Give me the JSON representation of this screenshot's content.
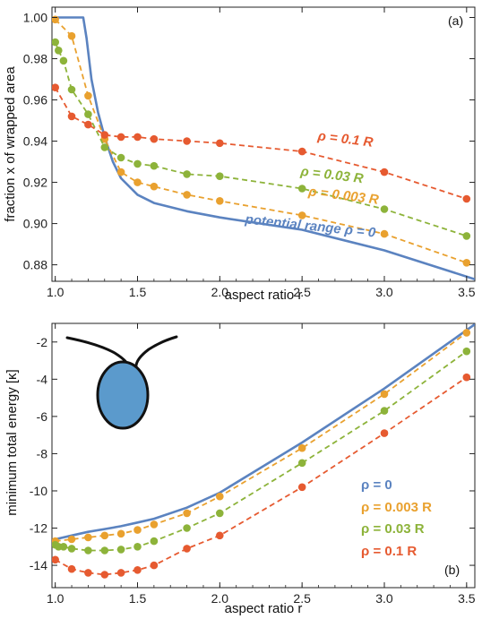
{
  "colors": {
    "rho_0": "#5B83C0",
    "rho_0_003": "#E9A12F",
    "rho_0_03": "#8DB33A",
    "rho_0_1": "#E65A30",
    "frame": "#222222",
    "icon_fill": "#5B9ACC"
  },
  "chart_data": [
    {
      "panel_label": "(a)",
      "type": "line",
      "xlabel": "aspect ratio r",
      "ylabel": "fraction x of wrapped area",
      "xlim": [
        0.98,
        3.55
      ],
      "ylim": [
        0.872,
        1.005
      ],
      "xticks": [
        1.0,
        1.5,
        2.0,
        2.5,
        3.0,
        3.5
      ],
      "xtick_labels": [
        "1.0",
        "1.5",
        "2.0",
        "2.5",
        "3.0",
        "3.5"
      ],
      "yticks": [
        0.88,
        0.9,
        0.92,
        0.94,
        0.96,
        0.98,
        1.0
      ],
      "ytick_labels": [
        "0.88",
        "0.90",
        "0.92",
        "0.94",
        "0.96",
        "0.98",
        "1.00"
      ],
      "grid": false,
      "series": [
        {
          "name": "potential range ρ = 0",
          "color_key": "rho_0",
          "style": "solid",
          "markers": false,
          "x": [
            1.0,
            1.17,
            1.19,
            1.22,
            1.26,
            1.3,
            1.35,
            1.4,
            1.5,
            1.6,
            1.8,
            2.0,
            2.5,
            3.0,
            3.55
          ],
          "y": [
            1.0,
            1.0,
            0.99,
            0.97,
            0.954,
            0.942,
            0.93,
            0.922,
            0.914,
            0.91,
            0.906,
            0.903,
            0.897,
            0.887,
            0.873
          ]
        },
        {
          "name": "ρ = 0.003 R",
          "color_key": "rho_0_003",
          "style": "dashed",
          "markers": true,
          "x": [
            1.0,
            1.1,
            1.2,
            1.3,
            1.4,
            1.5,
            1.6,
            1.8,
            2.0,
            2.5,
            3.0,
            3.5
          ],
          "y": [
            0.999,
            0.991,
            0.962,
            0.941,
            0.925,
            0.92,
            0.918,
            0.914,
            0.911,
            0.904,
            0.895,
            0.881
          ]
        },
        {
          "name": "ρ = 0.03 R",
          "color_key": "rho_0_03",
          "style": "dashed",
          "markers": true,
          "x": [
            1.0,
            1.02,
            1.05,
            1.1,
            1.2,
            1.3,
            1.4,
            1.5,
            1.6,
            1.8,
            2.0,
            2.5,
            3.0,
            3.5
          ],
          "y": [
            0.988,
            0.984,
            0.979,
            0.965,
            0.953,
            0.937,
            0.932,
            0.929,
            0.928,
            0.924,
            0.923,
            0.917,
            0.907,
            0.894
          ]
        },
        {
          "name": "ρ = 0.1 R",
          "color_key": "rho_0_1",
          "style": "dashed",
          "markers": true,
          "x": [
            1.0,
            1.1,
            1.2,
            1.3,
            1.4,
            1.5,
            1.6,
            1.8,
            2.0,
            2.5,
            3.0,
            3.5
          ],
          "y": [
            0.966,
            0.952,
            0.948,
            0.943,
            0.942,
            0.942,
            0.941,
            0.94,
            0.939,
            0.935,
            0.925,
            0.912
          ]
        }
      ],
      "annotations": [
        {
          "text": "ρ = 0.1 R",
          "color_key": "rho_0_1"
        },
        {
          "text": "ρ = 0.03 R",
          "color_key": "rho_0_03"
        },
        {
          "text": "ρ = 0.003 R",
          "color_key": "rho_0_003"
        },
        {
          "text": "potential range ρ = 0",
          "color_key": "rho_0"
        }
      ]
    },
    {
      "panel_label": "(b)",
      "type": "line",
      "xlabel": "aspect ratio r",
      "ylabel": "minimum total energy   [κ]",
      "xlim": [
        0.98,
        3.55
      ],
      "ylim": [
        -15.2,
        -1.0
      ],
      "xticks": [
        1.0,
        1.5,
        2.0,
        2.5,
        3.0,
        3.5
      ],
      "xtick_labels": [
        "1.0",
        "1.5",
        "2.0",
        "2.5",
        "3.0",
        "3.5"
      ],
      "yticks": [
        -14,
        -12,
        -10,
        -8,
        -6,
        -4,
        -2
      ],
      "ytick_labels": [
        "-14",
        "-12",
        "-10",
        "-8",
        "-6",
        "-4",
        "-2"
      ],
      "grid": false,
      "legend": {
        "placement": "lower-right",
        "entries": [
          {
            "text": "ρ = 0",
            "color_key": "rho_0"
          },
          {
            "text": "ρ = 0.003 R",
            "color_key": "rho_0_003"
          },
          {
            "text": "ρ = 0.03 R",
            "color_key": "rho_0_03"
          },
          {
            "text": "ρ = 0.1 R",
            "color_key": "rho_0_1"
          }
        ]
      },
      "series": [
        {
          "name": "ρ = 0",
          "color_key": "rho_0",
          "style": "solid",
          "markers": false,
          "x": [
            1.0,
            1.1,
            1.2,
            1.3,
            1.4,
            1.5,
            1.6,
            1.8,
            2.0,
            2.5,
            3.0,
            3.55
          ],
          "y": [
            -12.6,
            -12.4,
            -12.2,
            -12.05,
            -11.9,
            -11.7,
            -11.5,
            -10.9,
            -10.1,
            -7.4,
            -4.5,
            -1.05
          ]
        },
        {
          "name": "ρ = 0.003 R",
          "color_key": "rho_0_003",
          "style": "dashed",
          "markers": true,
          "x": [
            1.0,
            1.1,
            1.2,
            1.3,
            1.4,
            1.5,
            1.6,
            1.8,
            2.0,
            2.5,
            3.0,
            3.5
          ],
          "y": [
            -12.7,
            -12.6,
            -12.5,
            -12.4,
            -12.3,
            -12.1,
            -11.8,
            -11.2,
            -10.3,
            -7.7,
            -4.8,
            -1.5
          ]
        },
        {
          "name": "ρ = 0.03 R",
          "color_key": "rho_0_03",
          "style": "dashed",
          "markers": true,
          "x": [
            1.0,
            1.02,
            1.05,
            1.1,
            1.2,
            1.3,
            1.4,
            1.5,
            1.6,
            1.8,
            2.0,
            2.5,
            3.0,
            3.5
          ],
          "y": [
            -12.9,
            -13.0,
            -13.0,
            -13.1,
            -13.2,
            -13.2,
            -13.15,
            -13.0,
            -12.7,
            -12.0,
            -11.2,
            -8.5,
            -5.7,
            -2.5
          ]
        },
        {
          "name": "ρ = 0.1 R",
          "color_key": "rho_0_1",
          "style": "dashed",
          "markers": true,
          "x": [
            1.0,
            1.1,
            1.2,
            1.3,
            1.4,
            1.5,
            1.6,
            1.8,
            2.0,
            2.5,
            3.0,
            3.5
          ],
          "y": [
            -13.7,
            -14.2,
            -14.4,
            -14.5,
            -14.4,
            -14.25,
            -14.0,
            -13.1,
            -12.4,
            -9.8,
            -6.9,
            -3.9
          ]
        }
      ]
    }
  ]
}
